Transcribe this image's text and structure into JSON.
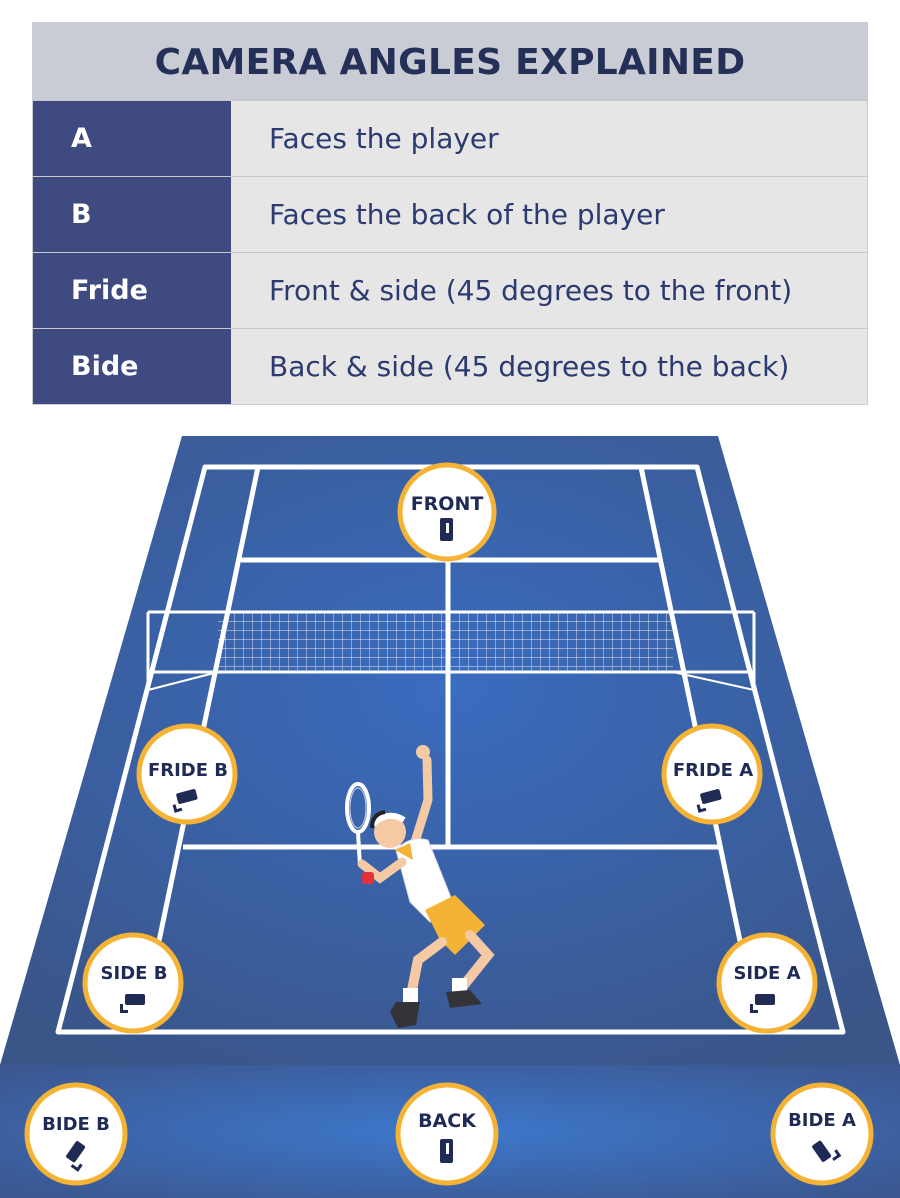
{
  "legend": {
    "title": "CAMERA ANGLES EXPLAINED",
    "rows": [
      {
        "key": "A",
        "desc": "Faces the player"
      },
      {
        "key": "B",
        "desc": "Faces the back of the player"
      },
      {
        "key": "Fride",
        "desc": "Front & side (45 degrees to the front)"
      },
      {
        "key": "Bide",
        "desc": "Back & side (45 degrees to the back)"
      }
    ]
  },
  "cameras": {
    "front": "FRONT",
    "fride_b": "FRIDE B",
    "fride_a": "FRIDE A",
    "side_b": "SIDE B",
    "side_a": "SIDE A",
    "bide_b": "BIDE B",
    "back": "BACK",
    "bide_a": "BIDE A"
  },
  "colors": {
    "court_blue": "#2f5fa6",
    "surround_blue": "#3e5a90",
    "badge_ring": "#f5b335",
    "legend_key_bg": "#3e4a80"
  }
}
